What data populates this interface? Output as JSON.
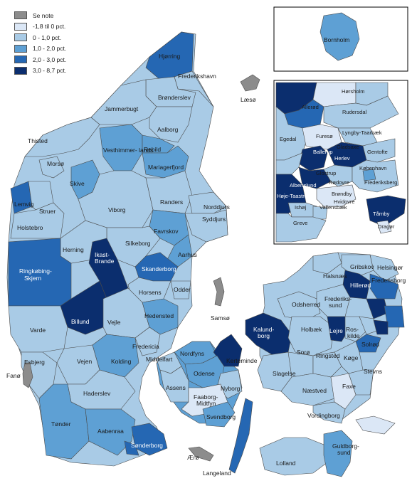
{
  "legend": {
    "items": [
      {
        "label": "Se note",
        "color": "#8c8c8c"
      },
      {
        "label": "-1,8 til 0 pct.",
        "color": "#dbe7f6"
      },
      {
        "label": "0 - 1,0 pct.",
        "color": "#a9cbe6"
      },
      {
        "label": "1,0 - 2,0 pct.",
        "color": "#5ea0d4"
      },
      {
        "label": "2,0 - 3,0 pct.",
        "color": "#2567b3"
      },
      {
        "label": "3,0 - 8,7 pct.",
        "color": "#0b2e6e"
      }
    ]
  },
  "colors": {
    "outline": "#4a4a4a",
    "sea": "#ffffff",
    "frame": "#000000"
  },
  "labels": {
    "hjorring": "Hjørring",
    "frederikshavn": "Frederikshavn",
    "laeso": "Læsø",
    "bronderslev": "Brønderslev",
    "jammerbugt": "Jammerbugt",
    "aalborg": "Aalborg",
    "thisted": "Thisted",
    "vesthimmerlands": "Vesthimmer-\nlands",
    "rebild": "Rebild",
    "morso": "Morsø",
    "mariagerfjord": "Mariagerfjord",
    "skive": "Skive",
    "randers": "Randers",
    "norddjurs": "Norddjurs",
    "lemvig": "Lemvig",
    "struer": "Struer",
    "viborg": "Viborg",
    "syddjurs": "Syddjurs",
    "holstebro": "Holstebro",
    "favrskov": "Favrskov",
    "silkeborg": "Silkeborg",
    "herning": "Herning",
    "ikast_brande": "Ikast-\nBrande",
    "aarhus": "Aarhus",
    "skanderborg": "Skanderborg",
    "ringkobing_skjern": "Ringkøbing-\nSkjern",
    "horsens": "Horsens",
    "odder": "Odder",
    "samso": "Samsø",
    "billund": "Billund",
    "vejle": "Vejle",
    "hedensted": "Hedensted",
    "varde": "Varde",
    "fredericia": "Fredericia",
    "nordfyns": "Nordfyns",
    "kerteminde": "Kerteminde",
    "esbjerg": "Esbjerg",
    "vejen": "Vejen",
    "kolding": "Kolding",
    "middelfart": "Middelfart",
    "odense": "Odense",
    "nyborg": "Nyborg",
    "fano": "Fanø",
    "assens": "Assens",
    "faaborg_midtfyn": "Faaborg-\nMidtfyn",
    "haderslev": "Haderslev",
    "svendborg": "Svendborg",
    "tonder": "Tønder",
    "aabenraa": "Aabenraa",
    "sonderborg": "Sønderborg",
    "aero": "Ærø",
    "langeland": "Langeland",
    "lolland": "Lolland",
    "guldborgsund": "Guldborg-\nsund",
    "vordingborg": "Vordingborg",
    "faxe": "Faxe",
    "naestved": "Næstved",
    "stevns": "Stevns",
    "koge": "Køge",
    "ringsted": "Ringsted",
    "slagelse": "Slagelse",
    "soro": "Sorø",
    "holbaek": "Holbæk",
    "kalundborg": "Kalundborg",
    "lejre": "Lejre",
    "roskilde": "Ros-\nkilde",
    "solrod": "Solrød",
    "odsherred": "Odsherred",
    "frederikssund": "Frederiks-\nsund",
    "halsnaes": "Halsnæs",
    "gribskov": "Gribskov",
    "helsingor": "Helsingør",
    "hillerod": "Hillerød",
    "fredensborg": "Fredensborg",
    "bornholm": "Bornholm",
    "horsholm": "Hørsholm",
    "allerod": "Allerød",
    "rudersdal": "Rudersdal",
    "egedal": "Egedal",
    "furesø": "Furesø",
    "lyngby_taarbaek": "Lyngby-Taarbæk",
    "ballerup": "Ballerup",
    "gladsaxe": "Gladsaxe",
    "gentofte": "Gentofte",
    "herlev": "Herlev",
    "kobenhavn": "København",
    "glostrup": "Glostrup",
    "frederiksberg": "Frederiksberg",
    "albertslund": "Albertslund",
    "rodovre": "Rødovre",
    "brondby": "Brøndby",
    "hoje_taastrup": "Høje-Taastrup",
    "hvidovre": "Hvidovre",
    "ishoj": "Ishøj",
    "vallensbaek": "Vallensbæk",
    "tarnby": "Tårnby",
    "greve": "Greve",
    "dragor": "Dragør"
  }
}
